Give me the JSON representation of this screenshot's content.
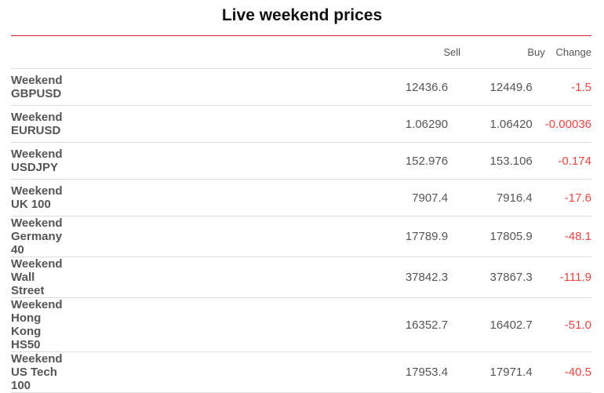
{
  "title": "Live weekend prices",
  "accent_color": "#e0262d",
  "negative_color": "#f0433f",
  "columns": {
    "name": "",
    "sell": "Sell",
    "buy": "Buy",
    "change": "Change"
  },
  "rows": [
    {
      "name": "Weekend GBPUSD",
      "sell": "12436.6",
      "buy": "12449.6",
      "change": "-1.5"
    },
    {
      "name": "Weekend EURUSD",
      "sell": "1.06290",
      "buy": "1.06420",
      "change": "-0.00036"
    },
    {
      "name": "Weekend USDJPY",
      "sell": "152.976",
      "buy": "153.106",
      "change": "-0.174"
    },
    {
      "name": "Weekend UK 100",
      "sell": "7907.4",
      "buy": "7916.4",
      "change": "-17.6"
    },
    {
      "name": "Weekend Germany 40",
      "sell": "17789.9",
      "buy": "17805.9",
      "change": "-48.1"
    },
    {
      "name": "Weekend Wall Street",
      "sell": "37842.3",
      "buy": "37867.3",
      "change": "-111.9"
    },
    {
      "name": "Weekend Hong Kong HS50",
      "sell": "16352.7",
      "buy": "16402.7",
      "change": "-51.0"
    },
    {
      "name": "Weekend US Tech 100",
      "sell": "17953.4",
      "buy": "17971.4",
      "change": "-40.5"
    }
  ]
}
